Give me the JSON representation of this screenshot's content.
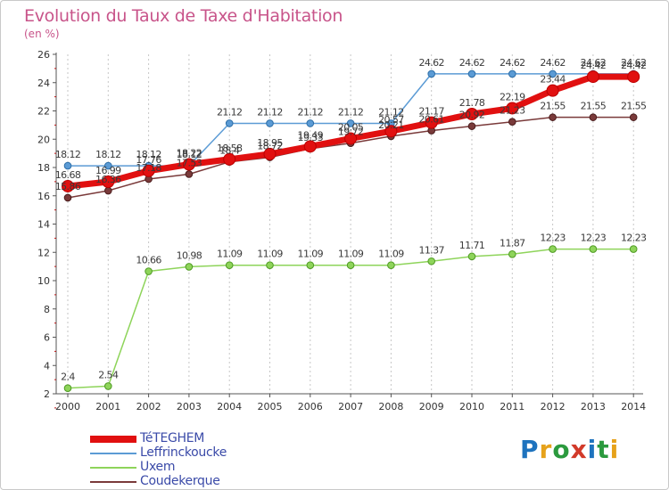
{
  "header": {
    "title": "Evolution du Taux de Taxe d'Habitation",
    "subtitle": "(en %)"
  },
  "logo": {
    "text": "Proxiti",
    "colors": [
      "#1e73be",
      "#e6a21b",
      "#2b9a3e",
      "#d23a2a",
      "#1e73be",
      "#2b9a3e",
      "#e6a21b"
    ]
  },
  "chart_data": {
    "type": "line",
    "title": "Evolution du Taux de Taxe d'Habitation",
    "subtitle": "(en %)",
    "xlabel": "",
    "ylabel": "",
    "x": [
      "2000",
      "2001",
      "2002",
      "2003",
      "2004",
      "2005",
      "2006",
      "2007",
      "2008",
      "2009",
      "2010",
      "2011",
      "2012",
      "2013",
      "2014"
    ],
    "ylim": [
      2,
      26
    ],
    "yticks": [
      "2",
      "4",
      "6",
      "8",
      "10",
      "12",
      "14",
      "16",
      "18",
      "20",
      "22",
      "24",
      "26"
    ],
    "grid": "vertical",
    "legend_position": "bottom-left",
    "series": [
      {
        "name": "TéTEGHEM",
        "color": "#e11010",
        "values": [
          16.68,
          16.99,
          17.76,
          18.22,
          18.58,
          18.95,
          19.49,
          20.05,
          20.57,
          21.17,
          21.78,
          22.19,
          23.44,
          24.42,
          24.42
        ],
        "labels": [
          "16.68",
          "16.99",
          "17.76",
          "18.22",
          "18.58",
          "18.95",
          "19.49",
          "20.05",
          "20.57",
          "21.17",
          "21.78",
          "22.19",
          "23.44",
          "24.42",
          "24.42"
        ]
      },
      {
        "name": "Leffrinckoucke",
        "color": "#5b9bd5",
        "values": [
          18.12,
          18.12,
          18.12,
          18.12,
          21.12,
          21.12,
          21.12,
          21.12,
          21.12,
          24.62,
          24.62,
          24.62,
          24.62,
          24.62,
          24.62
        ],
        "labels": [
          "18.12",
          "18.12",
          "18.12",
          "18.12",
          "21.12",
          "21.12",
          "21.12",
          "21.12",
          "21.12",
          "24.62",
          "24.62",
          "24.62",
          "24.62",
          "24.62",
          "24.62"
        ]
      },
      {
        "name": "Uxem",
        "color": "#8ed45a",
        "values": [
          2.4,
          2.54,
          10.66,
          10.98,
          11.09,
          11.09,
          11.09,
          11.09,
          11.09,
          11.37,
          11.71,
          11.87,
          12.23,
          12.23,
          12.23
        ],
        "labels": [
          "2.4",
          "2.54",
          "10.66",
          "10.98",
          "11.09",
          "11.09",
          "11.09",
          "11.09",
          "11.09",
          "11.37",
          "11.71",
          "11.87",
          "12.23",
          "12.23",
          "12.23"
        ]
      },
      {
        "name": "Coudekerque",
        "color": "#7a3a3a",
        "values": [
          15.86,
          16.36,
          17.18,
          17.53,
          18.4,
          18.72,
          19.33,
          19.72,
          20.21,
          20.61,
          20.92,
          21.23,
          21.55,
          21.55,
          21.55
        ],
        "labels": [
          "15.86",
          "16.36",
          "17.18",
          "17.53",
          "18.4",
          "18.72",
          "19.33",
          "19.72",
          "20.21",
          "20.61",
          "20.92",
          "21.23",
          "21.55",
          "21.55",
          "21.55"
        ]
      }
    ]
  }
}
